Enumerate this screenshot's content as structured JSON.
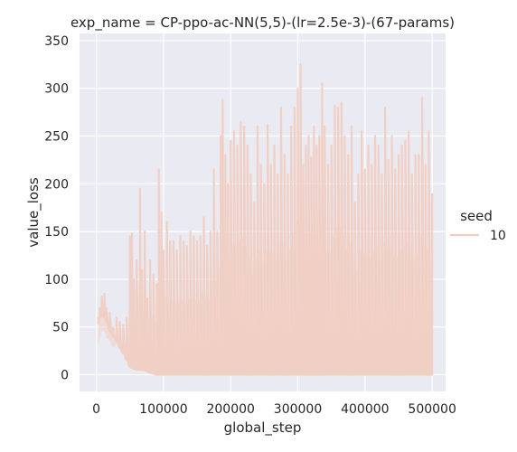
{
  "chart_data": {
    "type": "line",
    "title": "exp_name = CP-ppo-ac-NN(5,5)-(lr=2.5e-3)-(67-params)",
    "xlabel": "global_step",
    "ylabel": "value_loss",
    "xlim": [
      -25000,
      520000
    ],
    "ylim": [
      -17.5,
      357.5
    ],
    "xticks": [
      0,
      100000,
      200000,
      300000,
      400000,
      500000
    ],
    "yticks": [
      0,
      50,
      100,
      150,
      200,
      250,
      300,
      350
    ],
    "grid": true,
    "legend": {
      "title": "seed",
      "position": "right",
      "entries": [
        {
          "label": "10",
          "color": "#f0cfc3"
        }
      ]
    },
    "series": [
      {
        "name": "10",
        "color": "#f0cfc3",
        "envelope_min": [
          [
            0,
            42
          ],
          [
            5000,
            60
          ],
          [
            10000,
            62
          ],
          [
            15000,
            55
          ],
          [
            20000,
            45
          ],
          [
            25000,
            40
          ],
          [
            30000,
            35
          ],
          [
            35000,
            28
          ],
          [
            40000,
            22
          ],
          [
            45000,
            15
          ],
          [
            50000,
            8
          ],
          [
            60000,
            5
          ],
          [
            70000,
            5
          ],
          [
            80000,
            2
          ],
          [
            90000,
            0
          ],
          [
            500000,
            0
          ]
        ],
        "peaks": [
          [
            3000,
            60
          ],
          [
            5000,
            70
          ],
          [
            8000,
            82
          ],
          [
            12000,
            85
          ],
          [
            15000,
            70
          ],
          [
            20000,
            65
          ],
          [
            25000,
            50
          ],
          [
            30000,
            60
          ],
          [
            35000,
            55
          ],
          [
            40000,
            52
          ],
          [
            45000,
            60
          ],
          [
            50000,
            145
          ],
          [
            53000,
            148
          ],
          [
            56000,
            100
          ],
          [
            60000,
            120
          ],
          [
            65000,
            195
          ],
          [
            68000,
            110
          ],
          [
            72000,
            150
          ],
          [
            76000,
            80
          ],
          [
            80000,
            120
          ],
          [
            85000,
            105
          ],
          [
            90000,
            95
          ],
          [
            93000,
            215
          ],
          [
            97000,
            170
          ],
          [
            100000,
            130
          ],
          [
            105000,
            160
          ],
          [
            110000,
            140
          ],
          [
            115000,
            140
          ],
          [
            120000,
            130
          ],
          [
            125000,
            145
          ],
          [
            130000,
            140
          ],
          [
            135000,
            135
          ],
          [
            140000,
            150
          ],
          [
            145000,
            145
          ],
          [
            150000,
            140
          ],
          [
            155000,
            145
          ],
          [
            160000,
            165
          ],
          [
            165000,
            135
          ],
          [
            170000,
            150
          ],
          [
            175000,
            215
          ],
          [
            180000,
            150
          ],
          [
            185000,
            250
          ],
          [
            188000,
            288
          ],
          [
            192000,
            230
          ],
          [
            196000,
            200
          ],
          [
            200000,
            245
          ],
          [
            205000,
            255
          ],
          [
            210000,
            240
          ],
          [
            215000,
            265
          ],
          [
            220000,
            260
          ],
          [
            225000,
            240
          ],
          [
            230000,
            210
          ],
          [
            235000,
            180
          ],
          [
            240000,
            260
          ],
          [
            245000,
            220
          ],
          [
            250000,
            200
          ],
          [
            255000,
            262
          ],
          [
            260000,
            220
          ],
          [
            265000,
            240
          ],
          [
            270000,
            210
          ],
          [
            275000,
            280
          ],
          [
            280000,
            230
          ],
          [
            285000,
            210
          ],
          [
            290000,
            260
          ],
          [
            295000,
            280
          ],
          [
            300000,
            300
          ],
          [
            304000,
            325
          ],
          [
            308000,
            220
          ],
          [
            312000,
            240
          ],
          [
            316000,
            250
          ],
          [
            320000,
            228
          ],
          [
            324000,
            260
          ],
          [
            328000,
            240
          ],
          [
            332000,
            250
          ],
          [
            336000,
            305
          ],
          [
            340000,
            260
          ],
          [
            345000,
            220
          ],
          [
            350000,
            240
          ],
          [
            355000,
            282
          ],
          [
            360000,
            280
          ],
          [
            365000,
            285
          ],
          [
            370000,
            250
          ],
          [
            375000,
            230
          ],
          [
            380000,
            260
          ],
          [
            385000,
            180
          ],
          [
            390000,
            210
          ],
          [
            395000,
            255
          ],
          [
            400000,
            215
          ],
          [
            405000,
            240
          ],
          [
            410000,
            220
          ],
          [
            415000,
            250
          ],
          [
            420000,
            240
          ],
          [
            425000,
            210
          ],
          [
            430000,
            280
          ],
          [
            435000,
            225
          ],
          [
            440000,
            250
          ],
          [
            445000,
            215
          ],
          [
            450000,
            230
          ],
          [
            455000,
            240
          ],
          [
            460000,
            245
          ],
          [
            465000,
            255
          ],
          [
            470000,
            210
          ],
          [
            475000,
            230
          ],
          [
            480000,
            230
          ],
          [
            485000,
            290
          ],
          [
            490000,
            220
          ],
          [
            495000,
            255
          ],
          [
            500000,
            190
          ]
        ]
      }
    ]
  }
}
